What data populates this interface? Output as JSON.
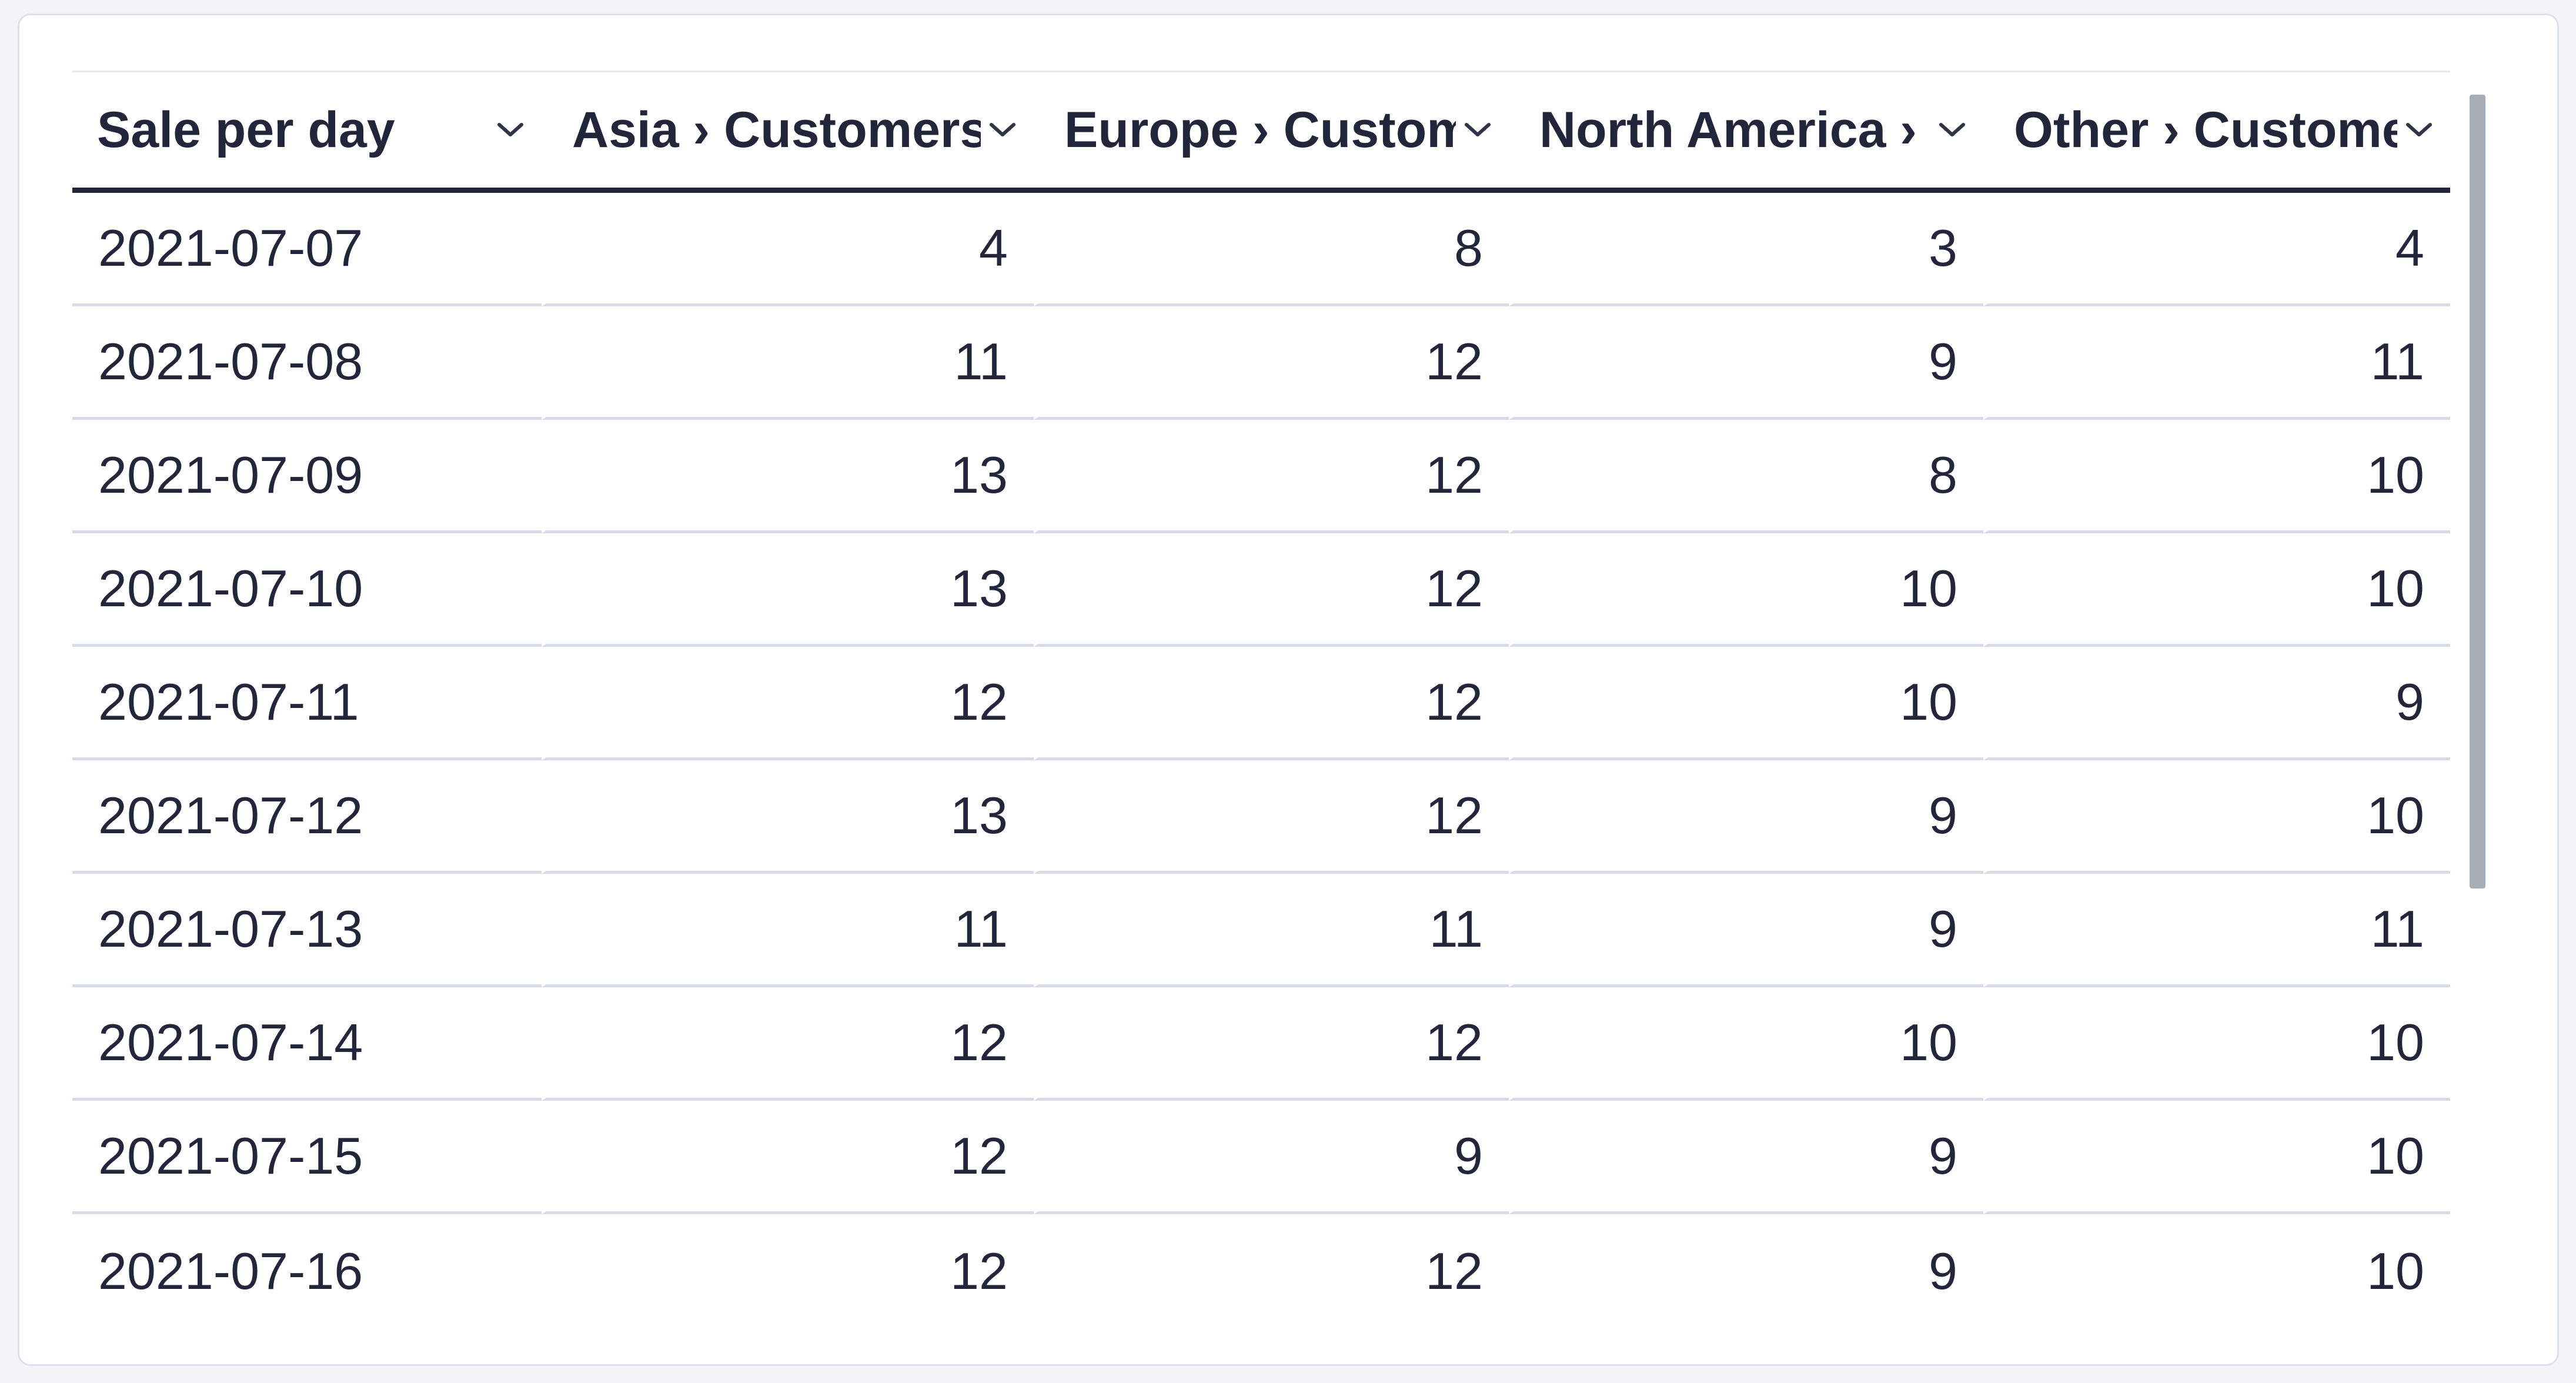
{
  "table": {
    "title": "Sale per day",
    "columns": [
      {
        "label": "Sale per day",
        "align": "left",
        "sortable": true
      },
      {
        "label": "Asia › Customers",
        "align": "right",
        "sortable": true
      },
      {
        "label": "Europe › Customers",
        "align": "right",
        "sortable": true
      },
      {
        "label": "North America › Customers",
        "align": "right",
        "sortable": true
      },
      {
        "label": "Other › Customers",
        "align": "right",
        "sortable": true
      }
    ],
    "rows": [
      [
        "2021-07-07",
        "4",
        "8",
        "3",
        "4"
      ],
      [
        "2021-07-08",
        "11",
        "12",
        "9",
        "11"
      ],
      [
        "2021-07-09",
        "13",
        "12",
        "8",
        "10"
      ],
      [
        "2021-07-10",
        "13",
        "12",
        "10",
        "10"
      ],
      [
        "2021-07-11",
        "12",
        "12",
        "10",
        "9"
      ],
      [
        "2021-07-12",
        "13",
        "12",
        "9",
        "10"
      ],
      [
        "2021-07-13",
        "11",
        "11",
        "9",
        "11"
      ],
      [
        "2021-07-14",
        "12",
        "12",
        "10",
        "10"
      ],
      [
        "2021-07-15",
        "12",
        "9",
        "9",
        "10"
      ],
      [
        "2021-07-16",
        "12",
        "12",
        "9",
        "10"
      ]
    ]
  },
  "icons": {
    "header_sort": "chevron-down-icon"
  },
  "scrollbar": {
    "orientation": "vertical",
    "visible": true
  },
  "colors": {
    "page_background": "#f2f4f8",
    "card_background": "#ffffff",
    "card_border": "#dce1ec",
    "text": "#23263b",
    "header_underline": "#23263b",
    "row_divider": "#d6dbe7",
    "header_top_line": "#e5e9f0",
    "scrollbar_thumb": "#a8acb4"
  }
}
